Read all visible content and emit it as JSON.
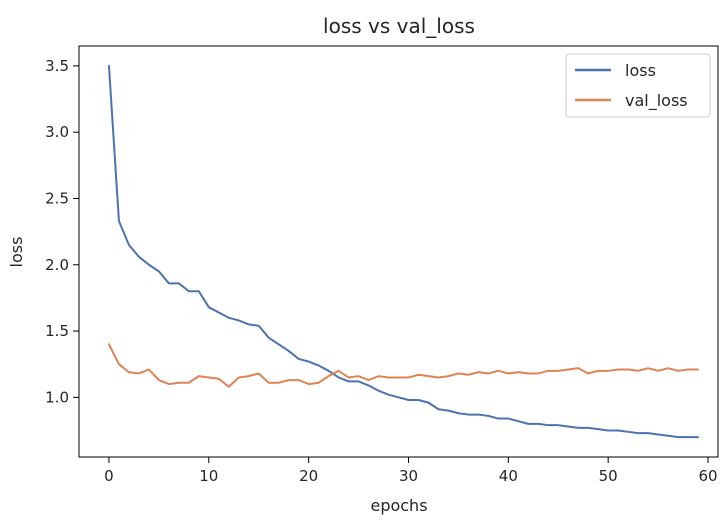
{
  "chart_data": {
    "type": "line",
    "title": "loss vs val_loss",
    "xlabel": "epochs",
    "ylabel": "loss",
    "xlim": [
      -3,
      61
    ],
    "ylim": [
      0.55,
      3.65
    ],
    "xticks": [
      0,
      10,
      20,
      30,
      40,
      50,
      60
    ],
    "yticks": [
      1.0,
      1.5,
      2.0,
      2.5,
      3.0,
      3.5
    ],
    "xtick_labels": [
      "0",
      "10",
      "20",
      "30",
      "40",
      "50",
      "60"
    ],
    "ytick_labels": [
      "1.0",
      "1.5",
      "2.0",
      "2.5",
      "3.0",
      "3.5"
    ],
    "grid": false,
    "legend_position": "top-right",
    "x": [
      0,
      1,
      2,
      3,
      4,
      5,
      6,
      7,
      8,
      9,
      10,
      11,
      12,
      13,
      14,
      15,
      16,
      17,
      18,
      19,
      20,
      21,
      22,
      23,
      24,
      25,
      26,
      27,
      28,
      29,
      30,
      31,
      32,
      33,
      34,
      35,
      36,
      37,
      38,
      39,
      40,
      41,
      42,
      43,
      44,
      45,
      46,
      47,
      48,
      49,
      50,
      51,
      52,
      53,
      54,
      55,
      56,
      57,
      58,
      59
    ],
    "series": [
      {
        "name": "loss",
        "color": "#4c72b0",
        "values": [
          3.5,
          2.33,
          2.15,
          2.06,
          2.0,
          1.95,
          1.86,
          1.86,
          1.8,
          1.8,
          1.68,
          1.64,
          1.6,
          1.58,
          1.55,
          1.54,
          1.45,
          1.4,
          1.35,
          1.29,
          1.27,
          1.24,
          1.2,
          1.15,
          1.12,
          1.12,
          1.09,
          1.05,
          1.02,
          1.0,
          0.98,
          0.98,
          0.96,
          0.91,
          0.9,
          0.88,
          0.87,
          0.87,
          0.86,
          0.84,
          0.84,
          0.82,
          0.8,
          0.8,
          0.79,
          0.79,
          0.78,
          0.77,
          0.77,
          0.76,
          0.75,
          0.75,
          0.74,
          0.73,
          0.73,
          0.72,
          0.71,
          0.7,
          0.7,
          0.7
        ]
      },
      {
        "name": "val_loss",
        "color": "#dd8452",
        "values": [
          1.4,
          1.25,
          1.19,
          1.18,
          1.21,
          1.13,
          1.1,
          1.11,
          1.11,
          1.16,
          1.15,
          1.14,
          1.08,
          1.15,
          1.16,
          1.18,
          1.11,
          1.11,
          1.13,
          1.13,
          1.1,
          1.11,
          1.16,
          1.2,
          1.15,
          1.16,
          1.13,
          1.16,
          1.15,
          1.15,
          1.15,
          1.17,
          1.16,
          1.15,
          1.16,
          1.18,
          1.17,
          1.19,
          1.18,
          1.2,
          1.18,
          1.19,
          1.18,
          1.18,
          1.2,
          1.2,
          1.21,
          1.22,
          1.18,
          1.2,
          1.2,
          1.21,
          1.21,
          1.2,
          1.22,
          1.2,
          1.22,
          1.2,
          1.21,
          1.21
        ]
      }
    ]
  }
}
